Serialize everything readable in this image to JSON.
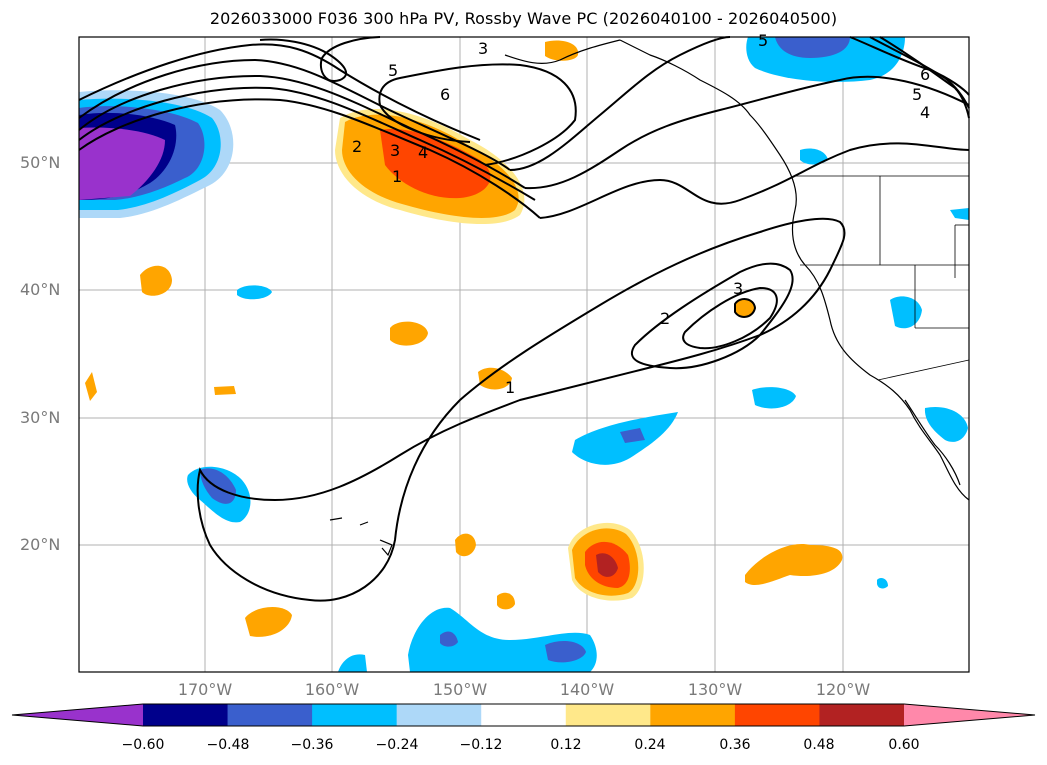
{
  "title": "2026033000 F036 300 hPa PV, Rossby Wave PC (2026040100 - 2026040500)",
  "lat_labels": [
    "50°N",
    "40°N",
    "30°N",
    "20°N"
  ],
  "lon_labels": [
    "170°W",
    "160°W",
    "150°W",
    "140°W",
    "130°W",
    "120°W"
  ],
  "colorbar": {
    "ticks": [
      "−0.60",
      "−0.48",
      "−0.36",
      "−0.24",
      "−0.12",
      "0.12",
      "0.24",
      "0.36",
      "0.48",
      "0.60"
    ],
    "colors": [
      "#9932CC",
      "#00008B",
      "#3A5FCD",
      "#00BFFF",
      "#ADD8F8",
      "#FFFFFF",
      "#FFE88A",
      "#FFA500",
      "#FF4500",
      "#B22222",
      "#FF88AA"
    ]
  },
  "contour_labels": [
    "3",
    "5",
    "6",
    "2",
    "3",
    "4",
    "1",
    "6",
    "5",
    "4",
    "5",
    "2",
    "3",
    "1"
  ]
}
